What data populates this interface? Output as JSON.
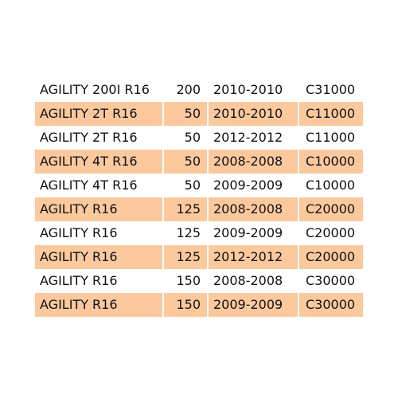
{
  "highlight_color": "#fbc99d",
  "rows": [
    {
      "model": "AGILITY 200I R16",
      "cc": "200",
      "years": "2010-2010",
      "code": "C31000"
    },
    {
      "model": "AGILITY 2T R16",
      "cc": "50",
      "years": "2010-2010",
      "code": "C11000"
    },
    {
      "model": "AGILITY 2T R16",
      "cc": "50",
      "years": "2012-2012",
      "code": "C11000"
    },
    {
      "model": "AGILITY 4T R16",
      "cc": "50",
      "years": "2008-2008",
      "code": "C10000"
    },
    {
      "model": "AGILITY 4T R16",
      "cc": "50",
      "years": "2009-2009",
      "code": "C10000"
    },
    {
      "model": "AGILITY R16",
      "cc": "125",
      "years": "2008-2008",
      "code": "C20000"
    },
    {
      "model": "AGILITY R16",
      "cc": "125",
      "years": "2009-2009",
      "code": "C20000"
    },
    {
      "model": "AGILITY R16",
      "cc": "125",
      "years": "2012-2012",
      "code": "C20000"
    },
    {
      "model": "AGILITY R16",
      "cc": "150",
      "years": "2008-2008",
      "code": "C30000"
    },
    {
      "model": "AGILITY R16",
      "cc": "150",
      "years": "2009-2009",
      "code": "C30000"
    }
  ]
}
